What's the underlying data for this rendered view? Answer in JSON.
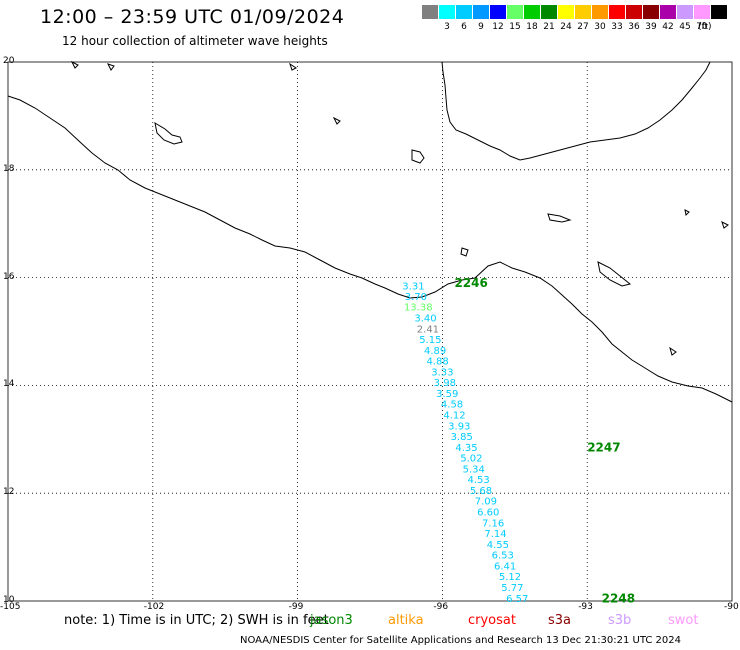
{
  "header": {
    "title": "12:00 – 23:59 UTC 01/09/2024",
    "subtitle": "12 hour collection of altimeter wave heights"
  },
  "legend": {
    "unit": "(ft)",
    "items": [
      {
        "label": "",
        "color": "#808080"
      },
      {
        "label": "3",
        "color": "#00ffff"
      },
      {
        "label": "6",
        "color": "#00ccff"
      },
      {
        "label": "9",
        "color": "#0099ff"
      },
      {
        "label": "12",
        "color": "#0000ff"
      },
      {
        "label": "15",
        "color": "#66ff66"
      },
      {
        "label": "18",
        "color": "#00cc00"
      },
      {
        "label": "21",
        "color": "#008800"
      },
      {
        "label": "24",
        "color": "#ffff00"
      },
      {
        "label": "27",
        "color": "#ffcc00"
      },
      {
        "label": "30",
        "color": "#ff9900"
      },
      {
        "label": "33",
        "color": "#ff0000"
      },
      {
        "label": "36",
        "color": "#cc0000"
      },
      {
        "label": "39",
        "color": "#880000"
      },
      {
        "label": "42",
        "color": "#aa00aa"
      },
      {
        "label": "45",
        "color": "#cc99ff"
      },
      {
        "label": "70",
        "color": "#ff99ff"
      },
      {
        "label": "",
        "color": "#000000"
      }
    ]
  },
  "axes": {
    "lat_labels": [
      "20",
      "18",
      "16",
      "14",
      "12",
      "10"
    ],
    "lon_labels": [
      "-105",
      "-102",
      "-99",
      "-96",
      "-93",
      "-90"
    ]
  },
  "track": {
    "labels": [
      {
        "lon": -95.75,
        "lat": 15.9,
        "text": "2246",
        "color": "#008800"
      },
      {
        "lon": -93.0,
        "lat": 12.85,
        "text": "2247",
        "color": "#008800"
      },
      {
        "lon": -92.7,
        "lat": 10.05,
        "text": "2248",
        "color": "#008800"
      }
    ],
    "points": [
      {
        "lon": -96.6,
        "lat": 15.85,
        "text": "3.31",
        "color": "#00ccff"
      },
      {
        "lon": -96.55,
        "lat": 15.66,
        "text": "3.70",
        "color": "#00ccff"
      },
      {
        "lon": -96.5,
        "lat": 15.46,
        "text": "13.38",
        "color": "#66ff66"
      },
      {
        "lon": -96.35,
        "lat": 15.26,
        "text": "3.40",
        "color": "#00ccff"
      },
      {
        "lon": -96.3,
        "lat": 15.06,
        "text": "2.41",
        "color": "#808080"
      },
      {
        "lon": -96.25,
        "lat": 14.86,
        "text": "5.15",
        "color": "#00ccff"
      },
      {
        "lon": -96.15,
        "lat": 14.66,
        "text": "4.89",
        "color": "#00ccff"
      },
      {
        "lon": -96.1,
        "lat": 14.46,
        "text": "4.88",
        "color": "#00ccff"
      },
      {
        "lon": -96.0,
        "lat": 14.26,
        "text": "3.33",
        "color": "#00ccff"
      },
      {
        "lon": -95.95,
        "lat": 14.06,
        "text": "3.98",
        "color": "#00ccff"
      },
      {
        "lon": -95.9,
        "lat": 13.86,
        "text": "3.59",
        "color": "#00ccff"
      },
      {
        "lon": -95.8,
        "lat": 13.66,
        "text": "4.58",
        "color": "#00ccff"
      },
      {
        "lon": -95.75,
        "lat": 13.46,
        "text": "4.12",
        "color": "#00ccff"
      },
      {
        "lon": -95.65,
        "lat": 13.26,
        "text": "3.93",
        "color": "#00ccff"
      },
      {
        "lon": -95.6,
        "lat": 13.06,
        "text": "3.85",
        "color": "#00ccff"
      },
      {
        "lon": -95.5,
        "lat": 12.86,
        "text": "4.35",
        "color": "#00ccff"
      },
      {
        "lon": -95.4,
        "lat": 12.66,
        "text": "5.02",
        "color": "#00ccff"
      },
      {
        "lon": -95.35,
        "lat": 12.46,
        "text": "5.34",
        "color": "#00ccff"
      },
      {
        "lon": -95.25,
        "lat": 12.26,
        "text": "4.53",
        "color": "#00ccff"
      },
      {
        "lon": -95.2,
        "lat": 12.06,
        "text": "5.68",
        "color": "#00ccff"
      },
      {
        "lon": -95.1,
        "lat": 11.86,
        "text": "7.09",
        "color": "#00ccff"
      },
      {
        "lon": -95.05,
        "lat": 11.66,
        "text": "6.60",
        "color": "#00ccff"
      },
      {
        "lon": -94.95,
        "lat": 11.46,
        "text": "7.16",
        "color": "#00ccff"
      },
      {
        "lon": -94.9,
        "lat": 11.26,
        "text": "7.14",
        "color": "#00ccff"
      },
      {
        "lon": -94.85,
        "lat": 11.06,
        "text": "4.55",
        "color": "#00ccff"
      },
      {
        "lon": -94.75,
        "lat": 10.86,
        "text": "6.53",
        "color": "#00ccff"
      },
      {
        "lon": -94.7,
        "lat": 10.66,
        "text": "6.41",
        "color": "#00ccff"
      },
      {
        "lon": -94.6,
        "lat": 10.46,
        "text": "5.12",
        "color": "#00ccff"
      },
      {
        "lon": -94.55,
        "lat": 10.26,
        "text": "5.77",
        "color": "#00ccff"
      },
      {
        "lon": -94.45,
        "lat": 10.06,
        "text": "6.57",
        "color": "#00ccff"
      }
    ]
  },
  "footer": {
    "note": "note: 1) Time is in UTC; 2) SWH is in feet",
    "satellites": [
      {
        "name": "jason3",
        "color": "#008800"
      },
      {
        "name": "altika",
        "color": "#ff9900"
      },
      {
        "name": "cryosat",
        "color": "#ff0000"
      },
      {
        "name": "s3a",
        "color": "#880000"
      },
      {
        "name": "s3b",
        "color": "#cc99ff"
      },
      {
        "name": "swot",
        "color": "#ff99ff"
      }
    ],
    "credit": "NOAA/NESDIS Center for Satellite Applications and Research   13 Dec 21:30:21 UTC 2024"
  }
}
